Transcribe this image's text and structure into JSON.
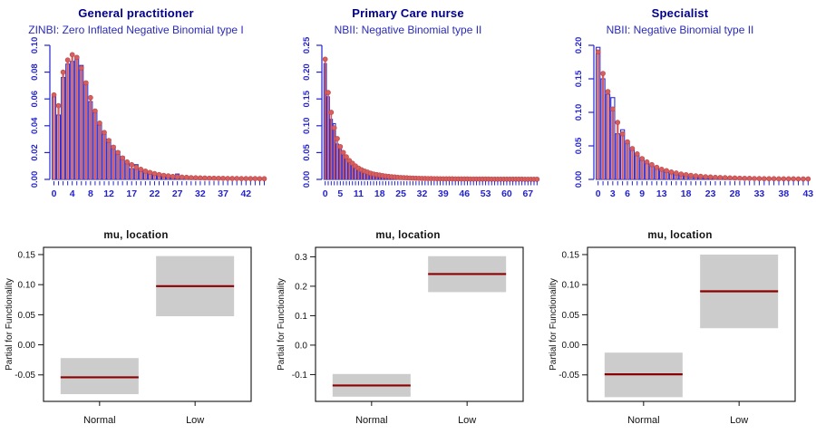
{
  "colors": {
    "title_navy": "#00008B",
    "subtitle_blue": "#2A2AB8",
    "axis_blue": "#2323CE",
    "bar_blue": "#2D2DD2",
    "fit_red": "#D75F5F",
    "fit_red_edge": "#C04B4B",
    "term_line_dark_red": "#8B0000",
    "term_box_gray": "#CCCCCC",
    "text_black": "#111111",
    "background": "#FFFFFF"
  },
  "chart_data": [
    {
      "kind": "histogram",
      "type": "bar",
      "title": "General practitioner",
      "subtitle": "ZINBI: Zero Inflated Negative Binomial type I",
      "xlabel": "",
      "ylabel": "",
      "ylim": [
        0,
        0.1
      ],
      "yticks": [
        {
          "v": 0.0,
          "label": "0.00"
        },
        {
          "v": 0.02,
          "label": "0.02"
        },
        {
          "v": 0.04,
          "label": "0.04"
        },
        {
          "v": 0.06,
          "label": "0.06"
        },
        {
          "v": 0.08,
          "label": "0.08"
        },
        {
          "v": 0.1,
          "label": "0.10"
        }
      ],
      "xticks": [
        {
          "at": 0,
          "label": "0"
        },
        {
          "at": 4,
          "label": "4"
        },
        {
          "at": 8,
          "label": "8"
        },
        {
          "at": 12,
          "label": "12"
        },
        {
          "at": 17,
          "label": "17"
        },
        {
          "at": 22,
          "label": "22"
        },
        {
          "at": 27,
          "label": "27"
        },
        {
          "at": 32,
          "label": "32"
        },
        {
          "at": 37,
          "label": "37"
        },
        {
          "at": 42,
          "label": "42"
        }
      ],
      "series": [
        {
          "name": "observed histogram (density)",
          "values": [
            0.062,
            0.048,
            0.076,
            0.086,
            0.088,
            0.09,
            0.085,
            0.072,
            0.058,
            0.05,
            0.042,
            0.035,
            0.03,
            0.025,
            0.021,
            0.017,
            0.013,
            0.008,
            0.011,
            0.006,
            0.005,
            0.0045,
            0.004,
            0.0033,
            0.0028,
            0.0025,
            0.0022,
            0.004,
            0.0018,
            0.0015,
            0.0013,
            0.0012,
            0.0011,
            0.001,
            0.0009,
            0.0009,
            0.0008,
            0.0007,
            0.0007,
            0.0006,
            0.0006,
            0.0006,
            0.0005,
            0.0005,
            0.0005,
            0.0004,
            0.0004
          ]
        },
        {
          "name": "ZINBI fitted probabilities",
          "values": [
            0.063,
            0.055,
            0.08,
            0.089,
            0.093,
            0.091,
            0.083,
            0.072,
            0.061,
            0.051,
            0.042,
            0.035,
            0.029,
            0.024,
            0.02,
            0.016,
            0.013,
            0.011,
            0.009,
            0.0075,
            0.0062,
            0.0052,
            0.0043,
            0.0036,
            0.003,
            0.0026,
            0.0022,
            0.0019,
            0.0017,
            0.0015,
            0.0013,
            0.0012,
            0.0011,
            0.001,
            0.0009,
            0.0009,
            0.0008,
            0.0008,
            0.0007,
            0.0007,
            0.0007,
            0.0006,
            0.0006,
            0.0006,
            0.0006,
            0.0005,
            0.0005
          ]
        }
      ]
    },
    {
      "kind": "histogram",
      "type": "bar",
      "title": "Primary Care nurse",
      "subtitle": "NBII: Negative Binomial type II",
      "xlabel": "",
      "ylabel": "",
      "ylim": [
        0,
        0.25
      ],
      "yticks": [
        {
          "v": 0.0,
          "label": "0.00"
        },
        {
          "v": 0.05,
          "label": "0.05"
        },
        {
          "v": 0.1,
          "label": "0.10"
        },
        {
          "v": 0.15,
          "label": "0.15"
        },
        {
          "v": 0.2,
          "label": "0.20"
        },
        {
          "v": 0.25,
          "label": "0.25"
        }
      ],
      "xticks": [
        {
          "at": 0,
          "label": "0"
        },
        {
          "at": 5,
          "label": "5"
        },
        {
          "at": 11,
          "label": "11"
        },
        {
          "at": 18,
          "label": "18"
        },
        {
          "at": 25,
          "label": "25"
        },
        {
          "at": 32,
          "label": "32"
        },
        {
          "at": 39,
          "label": "39"
        },
        {
          "at": 46,
          "label": "46"
        },
        {
          "at": 53,
          "label": "53"
        },
        {
          "at": 60,
          "label": "60"
        },
        {
          "at": 67,
          "label": "67"
        }
      ],
      "series": [
        {
          "name": "observed histogram (density)",
          "values": [
            0.216,
            0.154,
            0.112,
            0.104,
            0.066,
            0.056,
            0.047,
            0.039,
            0.033,
            0.028,
            0.023,
            0.019,
            0.016,
            0.014,
            0.012,
            0.01,
            0.009,
            0.008,
            0.007,
            0.006,
            0.0052,
            0.0046,
            0.004,
            0.0036,
            0.0032,
            0.0028,
            0.0025,
            0.0022,
            0.002,
            0.0018,
            0.0016,
            0.0015,
            0.0013,
            0.0012,
            0.0011,
            0.001,
            0.0009,
            0.0009,
            0.0008,
            0.0008,
            0.0007,
            0.0007,
            0.0006,
            0.0006,
            0.0006,
            0.0005,
            0.0005,
            0.0005,
            0.0005,
            0.0004,
            0.0004,
            0.0004,
            0.0004,
            0.0004,
            0.0003,
            0.0003,
            0.0003,
            0.0003,
            0.0003,
            0.0003,
            0.0003,
            0.0002,
            0.0002,
            0.0002,
            0.0002,
            0.0002,
            0.0002,
            0.0002,
            0.0002,
            0.0002,
            0.0002
          ]
        },
        {
          "name": "NBII fitted probabilities",
          "values": [
            0.224,
            0.162,
            0.125,
            0.096,
            0.076,
            0.061,
            0.05,
            0.042,
            0.035,
            0.03,
            0.025,
            0.021,
            0.018,
            0.0155,
            0.0135,
            0.0115,
            0.01,
            0.009,
            0.008,
            0.007,
            0.0062,
            0.0055,
            0.0049,
            0.0044,
            0.0039,
            0.0035,
            0.0032,
            0.0029,
            0.0026,
            0.0024,
            0.0022,
            0.002,
            0.0018,
            0.0017,
            0.0016,
            0.0015,
            0.0014,
            0.0013,
            0.0012,
            0.0011,
            0.0011,
            0.001,
            0.001,
            0.0009,
            0.0009,
            0.0008,
            0.0008,
            0.0008,
            0.0007,
            0.0007,
            0.0007,
            0.0006,
            0.0006,
            0.0006,
            0.0006,
            0.0005,
            0.0005,
            0.0005,
            0.0005,
            0.0005,
            0.0004,
            0.0004,
            0.0004,
            0.0004,
            0.0004,
            0.0004,
            0.0003,
            0.0003,
            0.0003,
            0.0003,
            0.0003
          ]
        }
      ]
    },
    {
      "kind": "histogram",
      "type": "bar",
      "title": "Specialist",
      "subtitle": "NBII: Negative Binomial type II",
      "xlabel": "",
      "ylabel": "",
      "ylim": [
        0,
        0.2
      ],
      "yticks": [
        {
          "v": 0.0,
          "label": "0.00"
        },
        {
          "v": 0.05,
          "label": "0.05"
        },
        {
          "v": 0.1,
          "label": "0.10"
        },
        {
          "v": 0.15,
          "label": "0.15"
        },
        {
          "v": 0.2,
          "label": "0.20"
        }
      ],
      "xticks": [
        {
          "at": 0,
          "label": "0"
        },
        {
          "at": 3,
          "label": "3"
        },
        {
          "at": 6,
          "label": "6"
        },
        {
          "at": 9,
          "label": "9"
        },
        {
          "at": 13,
          "label": "13"
        },
        {
          "at": 18,
          "label": "18"
        },
        {
          "at": 23,
          "label": "23"
        },
        {
          "at": 28,
          "label": "28"
        },
        {
          "at": 33,
          "label": "33"
        },
        {
          "at": 38,
          "label": "38"
        },
        {
          "at": 43,
          "label": "43"
        }
      ],
      "series": [
        {
          "name": "observed histogram (density)",
          "values": [
            0.197,
            0.15,
            0.127,
            0.122,
            0.068,
            0.074,
            0.055,
            0.044,
            0.038,
            0.03,
            0.025,
            0.021,
            0.017,
            0.014,
            0.012,
            0.01,
            0.009,
            0.0075,
            0.0065,
            0.0055,
            0.005,
            0.0042,
            0.0038,
            0.0032,
            0.0028,
            0.0025,
            0.0022,
            0.002,
            0.0018,
            0.0016,
            0.0014,
            0.0013,
            0.0012,
            0.001,
            0.001,
            0.0009,
            0.0008,
            0.0008,
            0.0007,
            0.0007,
            0.0006,
            0.0006,
            0.0005,
            0.0005
          ]
        },
        {
          "name": "NBII fitted probabilities",
          "values": [
            0.19,
            0.158,
            0.131,
            0.105,
            0.085,
            0.068,
            0.056,
            0.046,
            0.038,
            0.031,
            0.026,
            0.022,
            0.018,
            0.015,
            0.013,
            0.011,
            0.0095,
            0.008,
            0.007,
            0.006,
            0.0052,
            0.0046,
            0.004,
            0.0035,
            0.0031,
            0.0028,
            0.0025,
            0.0022,
            0.002,
            0.0018,
            0.0016,
            0.0015,
            0.0013,
            0.0012,
            0.0011,
            0.001,
            0.001,
            0.0009,
            0.0009,
            0.0008,
            0.0008,
            0.0007,
            0.0007,
            0.0007
          ]
        }
      ]
    },
    {
      "kind": "term",
      "type": "interval",
      "title": "mu, location",
      "ylabel": "Partial for Functionality",
      "ylim": [
        -0.094,
        0.162
      ],
      "yticks": [
        {
          "v": -0.05,
          "label": "-0.05"
        },
        {
          "v": 0.0,
          "label": "0.00"
        },
        {
          "v": 0.05,
          "label": "0.05"
        },
        {
          "v": 0.1,
          "label": "0.10"
        },
        {
          "v": 0.15,
          "label": "0.15"
        }
      ],
      "categories": [
        {
          "label": "Normal",
          "low": -0.082,
          "high": -0.022,
          "line": -0.054
        },
        {
          "label": "Low",
          "low": 0.0475,
          "high": 0.1475,
          "line": 0.0975
        }
      ]
    },
    {
      "kind": "term",
      "type": "interval",
      "title": "mu, location",
      "ylabel": "Partial for Functionality",
      "ylim": [
        -0.191,
        0.332
      ],
      "yticks": [
        {
          "v": -0.1,
          "label": "-0.1"
        },
        {
          "v": 0.0,
          "label": "0.0"
        },
        {
          "v": 0.1,
          "label": "0.1"
        },
        {
          "v": 0.2,
          "label": "0.2"
        },
        {
          "v": 0.3,
          "label": "0.3"
        }
      ],
      "categories": [
        {
          "label": "Normal",
          "low": -0.175,
          "high": -0.098,
          "line": -0.137
        },
        {
          "label": "Low",
          "low": 0.18,
          "high": 0.302,
          "line": 0.2415
        }
      ]
    },
    {
      "kind": "term",
      "type": "interval",
      "title": "mu, location",
      "ylabel": "Partial for Functionality",
      "ylim": [
        -0.094,
        0.162
      ],
      "yticks": [
        {
          "v": -0.05,
          "label": "-0.05"
        },
        {
          "v": 0.0,
          "label": "0.00"
        },
        {
          "v": 0.05,
          "label": "0.05"
        },
        {
          "v": 0.1,
          "label": "0.10"
        },
        {
          "v": 0.15,
          "label": "0.15"
        }
      ],
      "categories": [
        {
          "label": "Normal",
          "low": -0.087,
          "high": -0.013,
          "line": -0.049
        },
        {
          "label": "Low",
          "low": 0.0276,
          "high": 0.15,
          "line": 0.089
        }
      ]
    }
  ]
}
